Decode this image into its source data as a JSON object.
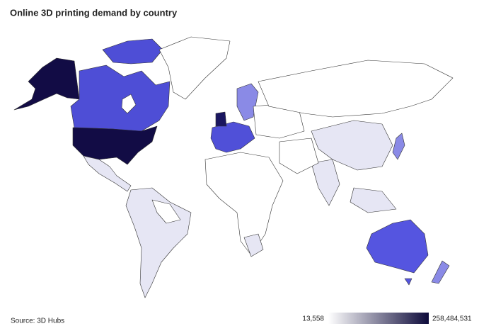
{
  "chart_data": {
    "type": "choropleth",
    "title": "Online 3D printing demand by country",
    "source": "Source: 3D Hubs",
    "colorbar": {
      "colors": [
        "#ffffff",
        "#0d0a3a"
      ],
      "ticks": [
        {
          "value": 13558,
          "label": "13,558"
        },
        {
          "value": 258484531,
          "label": "258,484,531"
        }
      ]
    }
  }
}
